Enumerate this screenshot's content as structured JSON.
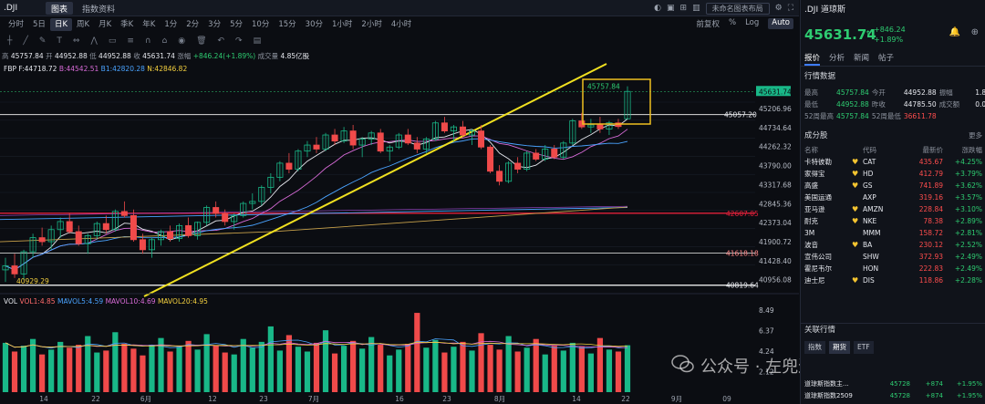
{
  "app": {
    "symbol": ".DJI",
    "tabs": [
      "图表",
      "指数资料"
    ],
    "right_tools": [
      "未命名图表布局"
    ],
    "periods": [
      "分时",
      "5日",
      "日K",
      "周K",
      "月K",
      "季K",
      "年K",
      "1分",
      "2分",
      "3分",
      "5分",
      "10分",
      "15分",
      "30分",
      "1小时",
      "2小时",
      "4小时"
    ],
    "active_period": "日K",
    "period_right": [
      "前复权",
      "%",
      "Log",
      "Auto"
    ]
  },
  "ohlc": {
    "high_label": "高",
    "high": "45757.84",
    "open_label": "开",
    "open": "44952.88",
    "low_label": "低",
    "low": "44952.88",
    "close_label": "收",
    "close": "45631.74",
    "change_label": "涨幅",
    "change": "+846.24(+1.89%)",
    "volume_label": "成交量",
    "volume": "4.85亿股"
  },
  "fbp": {
    "name": "FBP",
    "f": "F:44718.72",
    "b": "B:44542.51",
    "b1": "B1:42820.28",
    "n": "N:42846.82"
  },
  "volume_legend": {
    "vol": "VOL",
    "vol1": "VOL1:4.85",
    "mavol5": "MAVOL5:4.59",
    "mavol10": "MAVOL10:4.69",
    "mavol20": "MAVOL20:4.95"
  },
  "price_axis": [
    "45206.96",
    "44734.64",
    "44262.32",
    "43790.00",
    "43317.68",
    "42845.36",
    "42373.04",
    "41900.72",
    "41428.40",
    "40956.08"
  ],
  "price_tags": {
    "last": "45631.74",
    "high_mark": "45757.84",
    "line1": "45057.20",
    "red_line": "42607.05",
    "line_mid": "41618.18",
    "line_low": "40819.64",
    "line_left": "40929.29"
  },
  "vol_axis": [
    "8.49",
    "6.37",
    "4.24",
    "2.12"
  ],
  "x_axis": [
    "14",
    "22",
    "6月",
    "12",
    "23",
    "7月",
    "16",
    "23",
    "8月",
    "14",
    "22",
    "9月",
    "09"
  ],
  "chart_data": {
    "type": "candlestick",
    "title": ".DJI",
    "x_ticks": [
      "14",
      "22",
      "6月",
      "12",
      "23",
      "7月",
      "16",
      "23",
      "8月",
      "14",
      "22",
      "9月",
      "09"
    ],
    "candles": [
      [
        41200,
        41500,
        40900,
        41300
      ],
      [
        41300,
        41600,
        41000,
        41100
      ],
      [
        41100,
        41700,
        40950,
        41650
      ],
      [
        41650,
        42100,
        41500,
        42000
      ],
      [
        42000,
        42250,
        41800,
        41900
      ],
      [
        41900,
        42300,
        41700,
        42200
      ],
      [
        42200,
        42500,
        42000,
        42400
      ],
      [
        42400,
        42600,
        42100,
        42150
      ],
      [
        42150,
        42300,
        41800,
        41850
      ],
      [
        41850,
        42100,
        41600,
        42050
      ],
      [
        42050,
        42400,
        41950,
        42350
      ],
      [
        42350,
        42550,
        42100,
        42200
      ],
      [
        42200,
        42700,
        42150,
        42650
      ],
      [
        42650,
        42900,
        42500,
        42550
      ],
      [
        42550,
        42700,
        41900,
        41950
      ],
      [
        41950,
        42100,
        41600,
        41700
      ],
      [
        41700,
        42000,
        41500,
        41950
      ],
      [
        41950,
        42200,
        41800,
        42150
      ],
      [
        42150,
        42300,
        41900,
        41980
      ],
      [
        41980,
        42350,
        41900,
        42300
      ],
      [
        42300,
        42500,
        42000,
        42050
      ],
      [
        42050,
        42400,
        41950,
        42380
      ],
      [
        42380,
        42800,
        42300,
        42750
      ],
      [
        42750,
        42900,
        42500,
        42600
      ],
      [
        42600,
        42700,
        42300,
        42400
      ],
      [
        42400,
        42600,
        42200,
        42550
      ],
      [
        42550,
        42900,
        42500,
        42850
      ],
      [
        42850,
        43100,
        42700,
        42900
      ],
      [
        42900,
        43300,
        42800,
        43250
      ],
      [
        43250,
        43600,
        43100,
        43500
      ],
      [
        43500,
        43900,
        43400,
        43850
      ],
      [
        43850,
        44100,
        43600,
        43700
      ],
      [
        43700,
        44200,
        43650,
        44150
      ],
      [
        44150,
        44400,
        44000,
        44300
      ],
      [
        44300,
        44500,
        44100,
        44200
      ],
      [
        44200,
        44600,
        44150,
        44550
      ],
      [
        44550,
        44700,
        44300,
        44400
      ],
      [
        44400,
        44750,
        44350,
        44650
      ],
      [
        44650,
        44800,
        44200,
        44300
      ],
      [
        44300,
        44500,
        44000,
        44450
      ],
      [
        44450,
        44650,
        44300,
        44600
      ],
      [
        44600,
        44700,
        44100,
        44150
      ],
      [
        44150,
        44300,
        43900,
        44250
      ],
      [
        44250,
        44600,
        44200,
        44550
      ],
      [
        44550,
        44700,
        44300,
        44350
      ],
      [
        44350,
        44500,
        44100,
        44200
      ],
      [
        44200,
        44500,
        44100,
        44450
      ],
      [
        44450,
        44900,
        44400,
        44850
      ],
      [
        44850,
        45000,
        44600,
        44650
      ],
      [
        44650,
        44800,
        44400,
        44750
      ],
      [
        44750,
        44900,
        44500,
        44550
      ],
      [
        44550,
        44700,
        44300,
        44650
      ],
      [
        44650,
        44800,
        44200,
        44250
      ],
      [
        44250,
        44300,
        43600,
        43650
      ],
      [
        43650,
        43800,
        43300,
        43400
      ],
      [
        43400,
        43900,
        43350,
        43850
      ],
      [
        43850,
        44000,
        43600,
        43700
      ],
      [
        43700,
        44150,
        43650,
        44100
      ],
      [
        44100,
        44200,
        43900,
        43950
      ],
      [
        43950,
        44300,
        43900,
        44200
      ],
      [
        44200,
        44300,
        43950,
        44000
      ],
      [
        44000,
        44400,
        43950,
        44350
      ],
      [
        44350,
        44950,
        44300,
        44900
      ],
      [
        44900,
        45100,
        44700,
        44750
      ],
      [
        44750,
        44950,
        44600,
        44800
      ],
      [
        44800,
        45000,
        44600,
        44700
      ],
      [
        44700,
        44900,
        44550,
        44850
      ],
      [
        44850,
        44950,
        44700,
        44760
      ],
      [
        44953,
        45758,
        44953,
        45632
      ]
    ],
    "volumes": [
      5.1,
      4.2,
      4.8,
      5.5,
      3.9,
      4.4,
      5.2,
      4.6,
      4.9,
      5.8,
      4.1,
      4.3,
      6.2,
      5.0,
      4.5,
      3.8,
      4.9,
      5.6,
      4.2,
      4.7,
      5.3,
      4.4,
      6.0,
      4.8,
      4.1,
      3.9,
      5.5,
      4.6,
      5.2,
      6.8,
      4.3,
      5.9,
      4.7,
      4.2,
      5.1,
      6.4,
      4.0,
      4.8,
      5.3,
      4.5,
      5.7,
      4.9,
      3.8,
      4.4,
      5.0,
      8.2,
      4.6,
      5.4,
      4.1,
      4.7,
      5.2,
      4.3,
      6.1,
      4.9,
      4.4,
      5.8,
      4.2,
      4.6,
      5.5,
      3.9,
      4.8,
      4.3,
      5.1,
      4.7,
      4.0,
      5.6,
      4.4,
      4.2,
      4.85
    ],
    "ylim": [
      40700,
      46000
    ],
    "series_lines": [
      "MA5",
      "MA10",
      "MA20",
      "MA60"
    ]
  },
  "right_panel": {
    "title": ".DJI 道琼斯",
    "price": "45631.74",
    "arrow": "↑",
    "change_abs": "+846.24",
    "change_pct": "+1.89%",
    "tabs": [
      "报价",
      "分析",
      "新闻",
      "帖子"
    ],
    "quote_title": "行情数据",
    "stats": [
      [
        "最高",
        "45757.84",
        "今开",
        "44952.88",
        "振幅",
        "1.80%"
      ],
      [
        "最低",
        "44952.88",
        "昨收",
        "44785.50",
        "成交额",
        "0.00"
      ],
      [
        "52周最高",
        "45757.84",
        "52周最低",
        "36611.78",
        "",
        ""
      ]
    ],
    "constituents_title": "成分股",
    "more": "更多",
    "table_headers": [
      "名称",
      "代码",
      "最新价",
      "涨跌幅"
    ],
    "constituents": [
      {
        "name": "卡特彼勒",
        "star": true,
        "code": "CAT",
        "price": "435.67",
        "chg": "+4.25%"
      },
      {
        "name": "家得宝",
        "star": true,
        "code": "HD",
        "price": "412.79",
        "chg": "+3.79%"
      },
      {
        "name": "高盛",
        "star": true,
        "code": "GS",
        "price": "741.89",
        "chg": "+3.62%"
      },
      {
        "name": "美国运通",
        "star": false,
        "code": "AXP",
        "price": "319.16",
        "chg": "+3.57%"
      },
      {
        "name": "亚马逊",
        "star": true,
        "code": "AMZN",
        "price": "228.84",
        "chg": "+3.10%"
      },
      {
        "name": "耐克",
        "star": true,
        "code": "NKE",
        "price": "78.38",
        "chg": "+2.89%"
      },
      {
        "name": "3M",
        "star": false,
        "code": "MMM",
        "price": "158.72",
        "chg": "+2.81%"
      },
      {
        "name": "波音",
        "star": true,
        "code": "BA",
        "price": "230.12",
        "chg": "+2.52%"
      },
      {
        "name": "宣伟公司",
        "star": false,
        "code": "SHW",
        "price": "372.93",
        "chg": "+2.49%"
      },
      {
        "name": "霍尼韦尔",
        "star": false,
        "code": "HON",
        "price": "222.83",
        "chg": "+2.49%"
      },
      {
        "name": "迪士尼",
        "star": true,
        "code": "DIS",
        "price": "118.86",
        "chg": "+2.28%"
      }
    ],
    "related_title": "关联行情",
    "related_tabs": [
      "指数",
      "期货",
      "ETF"
    ],
    "related": [
      {
        "name": "道琼斯指数主...",
        "price": "45728",
        "chg_abs": "+874",
        "chg": "+1.95%"
      },
      {
        "name": "道琼斯指数2509",
        "price": "45728",
        "chg_abs": "+874",
        "chg": "+1.95%"
      }
    ]
  },
  "watermark": "公众号 · 左兜进右兜"
}
